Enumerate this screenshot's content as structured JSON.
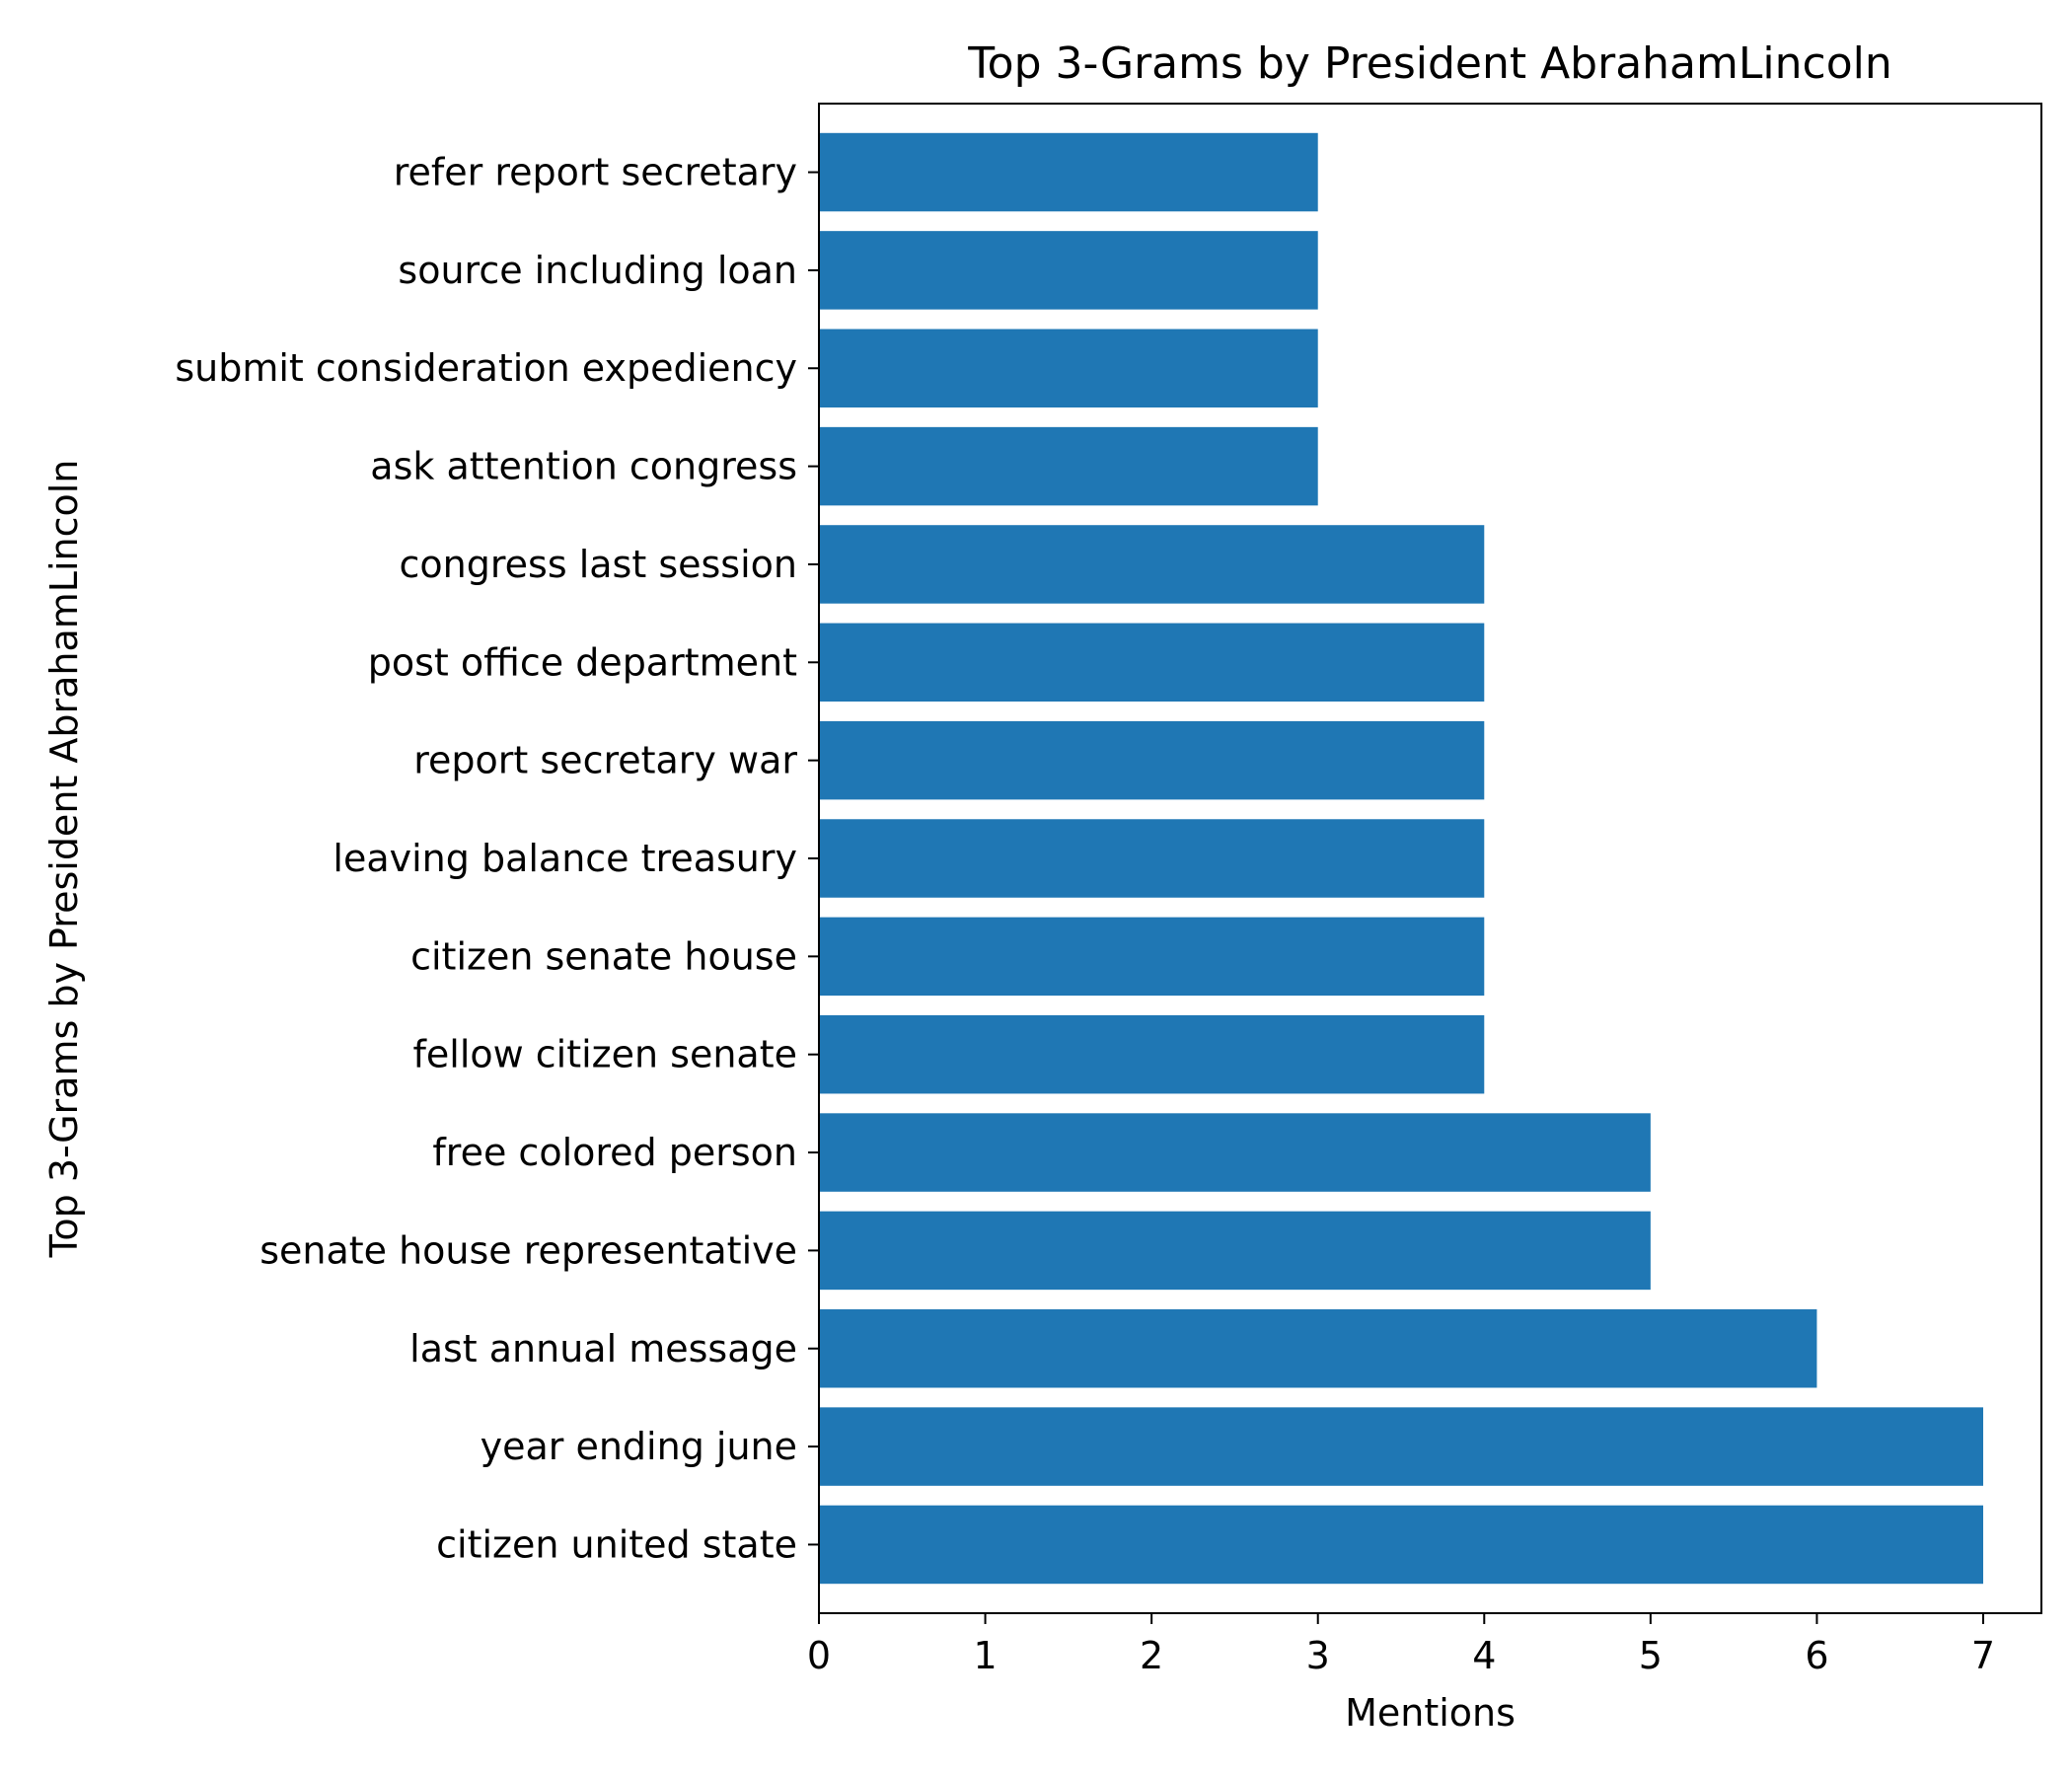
{
  "chart_data": {
    "type": "bar",
    "orientation": "horizontal",
    "title": "Top 3-Grams by President AbrahamLincoln",
    "xlabel": "Mentions",
    "ylabel": "Top 3-Grams by President AbrahamLincoln",
    "categories": [
      "citizen united state",
      "year ending june",
      "last annual message",
      "senate house representative",
      "free colored person",
      "fellow citizen senate",
      "citizen senate house",
      "leaving balance treasury",
      "report secretary war",
      "post office department",
      "congress last session",
      "ask attention congress",
      "submit consideration expediency",
      "source including loan",
      "refer report secretary"
    ],
    "values": [
      7,
      7,
      6,
      5,
      5,
      4,
      4,
      4,
      4,
      4,
      4,
      3,
      3,
      3,
      3
    ],
    "xticks": [
      0,
      1,
      2,
      3,
      4,
      5,
      6,
      7
    ],
    "xlim": [
      0,
      7.35
    ],
    "grid": false,
    "bar_color": "#1f77b4"
  }
}
